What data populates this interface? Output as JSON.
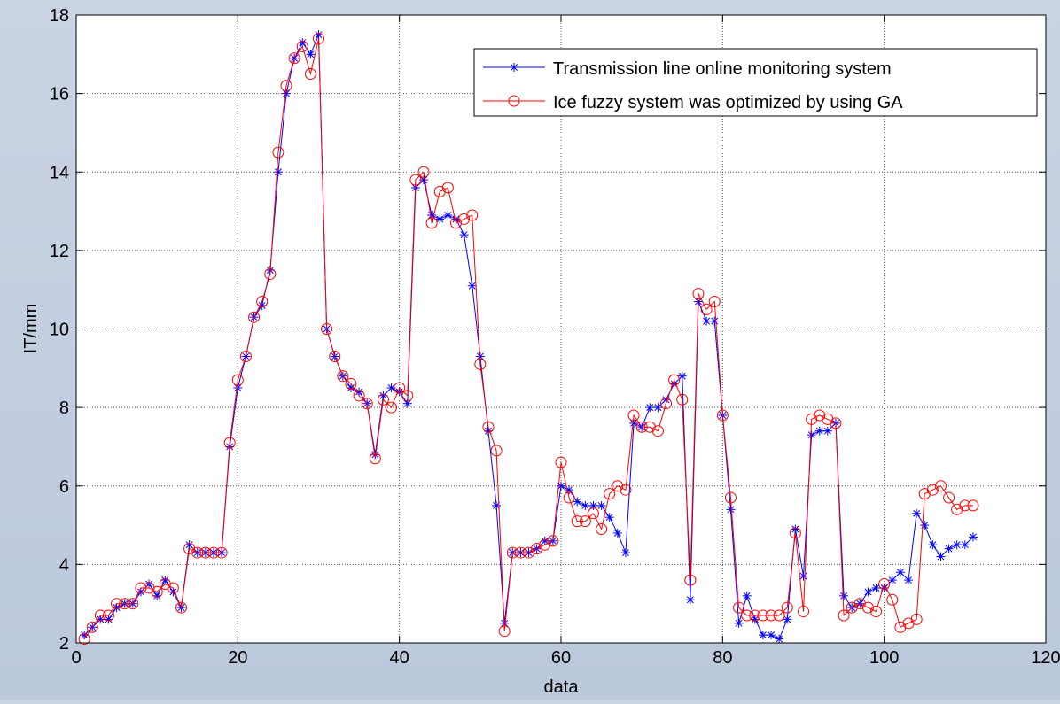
{
  "chart_data": {
    "type": "line",
    "xlabel": "data",
    "ylabel": "IT/mm",
    "xlim": [
      0,
      120
    ],
    "ylim": [
      2,
      18
    ],
    "xticks": [
      0,
      20,
      40,
      60,
      80,
      100,
      120
    ],
    "yticks": [
      2,
      4,
      6,
      8,
      10,
      12,
      14,
      16,
      18
    ],
    "grid": true,
    "legend_position": "top-right",
    "series": [
      {
        "name": "Transmission line online monitoring system",
        "color": "#0000ff",
        "marker": "asterisk",
        "x": [
          1,
          2,
          3,
          4,
          5,
          6,
          7,
          8,
          9,
          10,
          11,
          12,
          13,
          14,
          15,
          16,
          17,
          18,
          19,
          20,
          21,
          22,
          23,
          24,
          25,
          26,
          27,
          28,
          29,
          30,
          31,
          32,
          33,
          34,
          35,
          36,
          37,
          38,
          39,
          40,
          41,
          42,
          43,
          44,
          45,
          46,
          47,
          48,
          49,
          50,
          51,
          52,
          53,
          54,
          55,
          56,
          57,
          58,
          59,
          60,
          61,
          62,
          63,
          64,
          65,
          66,
          67,
          68,
          69,
          70,
          71,
          72,
          73,
          74,
          75,
          76,
          77,
          78,
          79,
          80,
          81,
          82,
          83,
          84,
          85,
          86,
          87,
          88,
          89,
          90,
          91,
          92,
          93,
          94,
          95,
          96,
          97,
          98,
          99,
          100,
          101,
          102,
          103,
          104,
          105,
          106,
          107,
          108,
          109,
          110,
          111
        ],
        "values": [
          2.2,
          2.4,
          2.6,
          2.6,
          2.9,
          3.0,
          3.0,
          3.3,
          3.5,
          3.2,
          3.6,
          3.3,
          2.9,
          4.5,
          4.3,
          4.3,
          4.3,
          4.3,
          7.0,
          8.5,
          9.3,
          10.3,
          10.6,
          11.5,
          14.0,
          16.0,
          16.9,
          17.3,
          17.0,
          17.5,
          10.0,
          9.3,
          8.8,
          8.5,
          8.4,
          8.1,
          6.8,
          8.3,
          8.5,
          8.4,
          8.1,
          13.6,
          13.8,
          12.9,
          12.8,
          12.9,
          12.8,
          12.4,
          11.1,
          9.3,
          7.4,
          5.5,
          2.5,
          4.3,
          4.3,
          4.3,
          4.4,
          4.6,
          4.6,
          6.0,
          5.9,
          5.6,
          5.5,
          5.5,
          5.5,
          5.2,
          4.8,
          4.3,
          7.6,
          7.5,
          8.0,
          8.0,
          8.2,
          8.6,
          8.8,
          3.1,
          10.7,
          10.2,
          10.2,
          7.8,
          5.4,
          2.5,
          3.2,
          2.6,
          2.2,
          2.2,
          2.1,
          2.6,
          4.9,
          3.7,
          7.3,
          7.4,
          7.4,
          7.6,
          3.2,
          2.9,
          3.0,
          3.3,
          3.4,
          3.4,
          3.6,
          3.8,
          3.6,
          5.3,
          5.0,
          4.5,
          4.2,
          4.4,
          4.5,
          4.5,
          4.7
        ]
      },
      {
        "name": "Ice fuzzy system was optimized by using GA",
        "color": "#ff0000",
        "marker": "circle",
        "x": [
          1,
          2,
          3,
          4,
          5,
          6,
          7,
          8,
          9,
          10,
          11,
          12,
          13,
          14,
          15,
          16,
          17,
          18,
          19,
          20,
          21,
          22,
          23,
          24,
          25,
          26,
          27,
          28,
          29,
          30,
          31,
          32,
          33,
          34,
          35,
          36,
          37,
          38,
          39,
          40,
          41,
          42,
          43,
          44,
          45,
          46,
          47,
          48,
          49,
          50,
          51,
          52,
          53,
          54,
          55,
          56,
          57,
          58,
          59,
          60,
          61,
          62,
          63,
          64,
          65,
          66,
          67,
          68,
          69,
          70,
          71,
          72,
          73,
          74,
          75,
          76,
          77,
          78,
          79,
          80,
          81,
          82,
          83,
          84,
          85,
          86,
          87,
          88,
          89,
          90,
          91,
          92,
          93,
          94,
          95,
          96,
          97,
          98,
          99,
          100,
          101,
          102,
          103,
          104,
          105,
          106,
          107,
          108,
          109,
          110,
          111
        ],
        "values": [
          2.1,
          2.4,
          2.7,
          2.7,
          3.0,
          3.0,
          3.0,
          3.4,
          3.4,
          3.3,
          3.5,
          3.4,
          2.9,
          4.4,
          4.3,
          4.3,
          4.3,
          4.3,
          7.1,
          8.7,
          9.3,
          10.3,
          10.7,
          11.4,
          14.5,
          16.2,
          16.9,
          17.2,
          16.5,
          17.4,
          10.0,
          9.3,
          8.8,
          8.6,
          8.3,
          8.1,
          6.7,
          8.2,
          8.0,
          8.5,
          8.3,
          13.8,
          14.0,
          12.7,
          13.5,
          13.6,
          12.7,
          12.8,
          12.9,
          9.1,
          7.5,
          6.9,
          2.3,
          4.3,
          4.3,
          4.3,
          4.4,
          4.5,
          4.6,
          6.6,
          5.7,
          5.1,
          5.1,
          5.3,
          4.9,
          5.8,
          6.0,
          5.9,
          7.8,
          7.5,
          7.5,
          7.4,
          8.1,
          8.7,
          8.2,
          3.6,
          10.9,
          10.5,
          10.7,
          7.8,
          5.7,
          2.9,
          2.7,
          2.7,
          2.7,
          2.7,
          2.7,
          2.9,
          4.8,
          2.8,
          7.7,
          7.8,
          7.7,
          7.6,
          2.7,
          2.9,
          3.0,
          2.9,
          2.8,
          3.5,
          3.1,
          2.4,
          2.5,
          2.6,
          5.8,
          5.9,
          6.0,
          5.7,
          5.4,
          5.5,
          5.5
        ]
      }
    ]
  }
}
